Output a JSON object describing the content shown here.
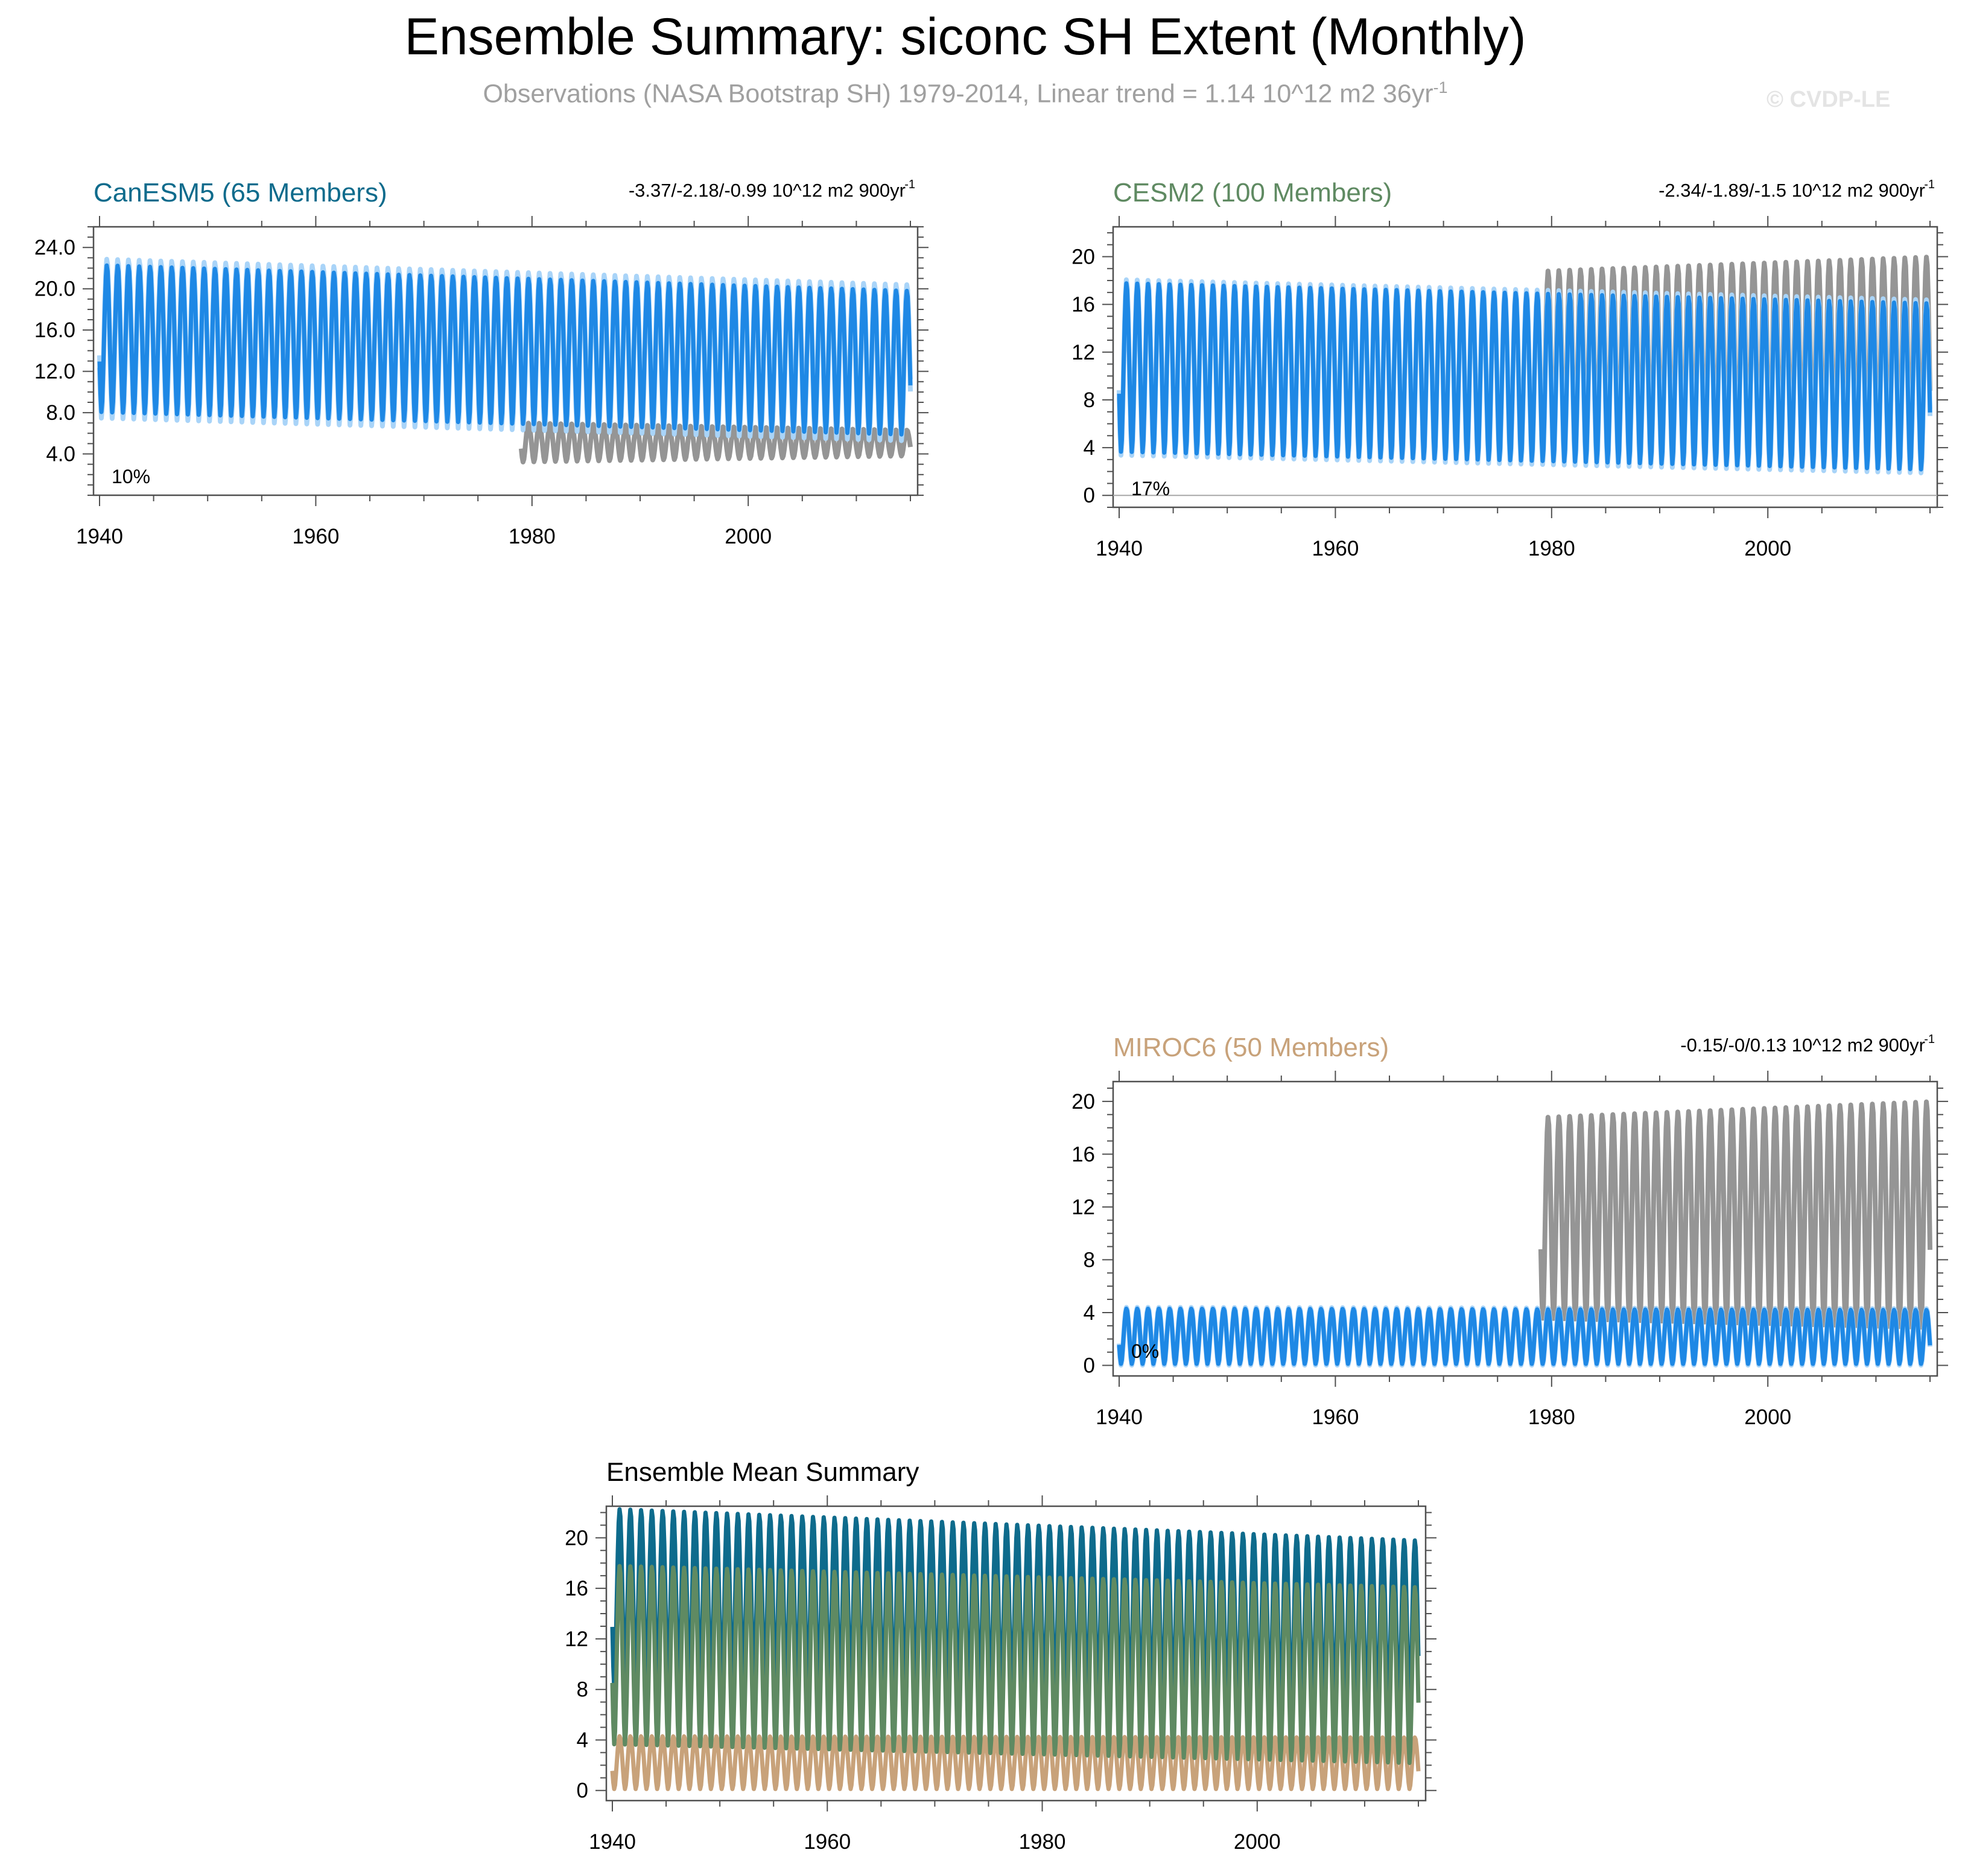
{
  "page": {
    "title": "Ensemble Summary: siconc SH Extent (Monthly)",
    "subtitle": "Observations (NASA Bootstrap SH) 1979-2014, Linear trend = 1.14 10^12 m2 36yr",
    "subtitle_sup": "-1",
    "watermark": "© CVDP-LE"
  },
  "colors": {
    "model_blue": "#1e88e5",
    "model_spread": "#a9d4f8",
    "observations": "#959595",
    "canesm5": "#0e6b8c",
    "cesm2": "#5f8a62",
    "miroc6": "#c8a27a",
    "axis": "#505050"
  },
  "chart_data": [
    {
      "type": "line",
      "id": "canesm5",
      "title": "CanESM5 (65 Members)",
      "trend_text": "-3.37/-2.18/-0.99 10^12 m2 900yr",
      "trend_sup": "-1",
      "percent_label": "10%",
      "x_range": [
        1940,
        2015
      ],
      "ylim": [
        0,
        26
      ],
      "yticks": [
        4.0,
        8.0,
        12.0,
        16.0,
        20.0,
        24.0
      ],
      "ytick_labels": [
        "4.0",
        "8.0",
        "12.0",
        "16.0",
        "20.0",
        "24.0"
      ],
      "xticks": [
        1940,
        1960,
        1980,
        2000
      ],
      "xtick_labels": [
        "1940",
        "1960",
        "1980",
        "2000"
      ],
      "series": [
        {
          "name": "Observations (1979-2014)",
          "role": "obs",
          "start_year": 1979,
          "end_year": 2015,
          "max_start": 7.0,
          "max_end": 6.3,
          "min_start": 3.2,
          "min_end": 3.8
        },
        {
          "name": "Ensemble mean",
          "role": "model",
          "start_year": 1940,
          "end_year": 2015,
          "max_start": 22.3,
          "max_end": 19.8,
          "min_start": 8.0,
          "min_end": 5.8,
          "spread": 0.6
        }
      ]
    },
    {
      "type": "line",
      "id": "cesm2",
      "title": "CESM2 (100 Members)",
      "trend_text": "-2.34/-1.89/-1.5 10^12 m2 900yr",
      "trend_sup": "-1",
      "percent_label": "17%",
      "x_range": [
        1940,
        2015
      ],
      "ylim": [
        -1,
        22.5
      ],
      "yticks": [
        0,
        4,
        8,
        12,
        16,
        20
      ],
      "ytick_labels": [
        "0",
        "4",
        "8",
        "12",
        "16",
        "20"
      ],
      "xticks": [
        1940,
        1960,
        1980,
        2000
      ],
      "xtick_labels": [
        "1940",
        "1960",
        "1980",
        "2000"
      ],
      "series": [
        {
          "name": "Observations (1979-2014)",
          "role": "obs",
          "start_year": 1979,
          "end_year": 2015,
          "max_start": 18.8,
          "max_end": 20.0,
          "min_start": 3.5,
          "min_end": 2.8
        },
        {
          "name": "Ensemble mean",
          "role": "model",
          "start_year": 1940,
          "end_year": 2015,
          "max_start": 17.8,
          "max_end": 16.1,
          "min_start": 3.6,
          "min_end": 2.1,
          "spread": 0.3
        }
      ]
    },
    {
      "type": "line",
      "id": "miroc6",
      "title": "MIROC6 (50 Members)",
      "trend_text": "-0.15/-0/0.13 10^12 m2 900yr",
      "trend_sup": "-1",
      "percent_label": "0%",
      "x_range": [
        1940,
        2015
      ],
      "ylim": [
        -0.8,
        21.5
      ],
      "yticks": [
        0,
        4,
        8,
        12,
        16,
        20
      ],
      "ytick_labels": [
        "0",
        "4",
        "8",
        "12",
        "16",
        "20"
      ],
      "xticks": [
        1940,
        1960,
        1980,
        2000
      ],
      "xtick_labels": [
        "1940",
        "1960",
        "1980",
        "2000"
      ],
      "series": [
        {
          "name": "Observations (1979-2014)",
          "role": "obs",
          "start_year": 1979,
          "end_year": 2015,
          "max_start": 18.8,
          "max_end": 20.0,
          "min_start": 3.5,
          "min_end": 2.8
        },
        {
          "name": "Ensemble mean",
          "role": "model",
          "start_year": 1940,
          "end_year": 2015,
          "max_start": 4.3,
          "max_end": 4.2,
          "min_start": 0.1,
          "min_end": 0.1,
          "spread": 0.1
        }
      ]
    },
    {
      "type": "line",
      "id": "ensemble-mean",
      "title": "Ensemble Mean Summary",
      "x_range": [
        1940,
        2015
      ],
      "ylim": [
        -0.8,
        22.5
      ],
      "yticks": [
        0,
        4,
        8,
        12,
        16,
        20
      ],
      "ytick_labels": [
        "0",
        "4",
        "8",
        "12",
        "16",
        "20"
      ],
      "xticks": [
        1940,
        1960,
        1980,
        2000
      ],
      "xtick_labels": [
        "1940",
        "1960",
        "1980",
        "2000"
      ],
      "series": [
        {
          "name": "MIROC6",
          "role": "miroc6",
          "start_year": 1940,
          "end_year": 2015,
          "max_start": 4.3,
          "max_end": 4.2,
          "min_start": 0.1,
          "min_end": 0.1
        },
        {
          "name": "CanESM5",
          "role": "canesm5",
          "start_year": 1940,
          "end_year": 2015,
          "max_start": 22.3,
          "max_end": 19.8,
          "min_start": 8.0,
          "min_end": 5.8
        },
        {
          "name": "CESM2",
          "role": "cesm2",
          "start_year": 1940,
          "end_year": 2015,
          "max_start": 17.8,
          "max_end": 16.1,
          "min_start": 3.6,
          "min_end": 2.1
        }
      ]
    }
  ]
}
